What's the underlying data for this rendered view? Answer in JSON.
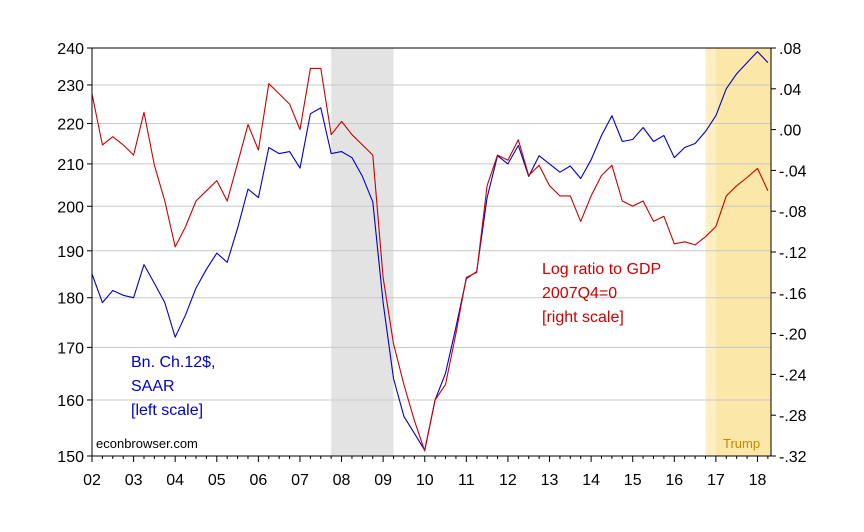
{
  "chart_data": {
    "type": "line",
    "xlabel": "",
    "ylabel": "",
    "x_ticks": [
      "02",
      "03",
      "04",
      "05",
      "06",
      "07",
      "08",
      "09",
      "10",
      "11",
      "12",
      "13",
      "14",
      "15",
      "16",
      "17",
      "18"
    ],
    "x_start": "2002Q1",
    "left_axis": {
      "scale": "log",
      "ylim": [
        150,
        240
      ],
      "ticks": [
        150,
        160,
        170,
        180,
        190,
        200,
        210,
        220,
        230,
        240
      ],
      "tick_labels": [
        "150",
        "160",
        "170",
        "180",
        "190",
        "200",
        "210",
        "220",
        "230",
        "240"
      ]
    },
    "right_axis": {
      "scale": "linear",
      "ylim": [
        -0.32,
        0.08
      ],
      "ticks": [
        -0.32,
        -0.28,
        -0.24,
        -0.2,
        -0.16,
        -0.12,
        -0.08,
        -0.04,
        0.0,
        0.04,
        0.08
      ],
      "tick_labels": [
        "-.32",
        "-.28",
        "-.24",
        "-.20",
        "-.16",
        "-.12",
        "-.08",
        "-.04",
        ".00",
        ".04",
        ".08"
      ]
    },
    "grid": true,
    "shaded_regions": [
      {
        "name": "recession",
        "start": 2007.75,
        "end": 2009.25,
        "color": "#e3e3e3"
      },
      {
        "name": "trump-light",
        "start": 2016.75,
        "end": 2017.0,
        "color": "#fdefc3"
      },
      {
        "name": "trump",
        "start": 2017.0,
        "end": 2018.25,
        "color": "#fbe7a7",
        "label": "Trump"
      }
    ],
    "series": [
      {
        "label": "Bn. Ch.12$, SAAR [left scale]",
        "label_lines": [
          "Bn. Ch.12$,",
          "SAAR",
          "[left scale]"
        ],
        "axis": "left",
        "color": "#0000cc",
        "values": [
          185,
          179,
          181.5,
          180.5,
          180,
          187,
          183,
          179,
          172,
          176.5,
          182,
          186,
          189.5,
          187.5,
          195,
          204,
          202,
          214,
          212.5,
          213,
          209,
          222.5,
          224,
          212.5,
          213,
          211.5,
          207,
          201,
          179,
          164,
          157,
          154,
          151,
          160,
          165,
          174,
          184,
          185.5,
          202,
          212,
          210,
          214.5,
          207,
          212,
          210,
          208,
          209.5,
          206.5,
          211,
          217,
          222,
          215.5,
          216,
          219,
          215.5,
          217,
          211.5,
          214,
          215,
          218,
          222,
          229,
          233,
          236,
          239,
          236
        ]
      },
      {
        "label": "Log ratio to GDP 2007Q4=0 [right scale]",
        "label_lines": [
          "Log ratio to GDP",
          "2007Q4=0",
          "[right scale]"
        ],
        "axis": "right",
        "color": "#cc0000",
        "values": [
          0.035,
          -0.015,
          -0.007,
          -0.015,
          -0.025,
          0.017,
          -0.035,
          -0.07,
          -0.115,
          -0.095,
          -0.07,
          -0.06,
          -0.05,
          -0.07,
          -0.033,
          0.005,
          -0.02,
          0.045,
          0.035,
          0.025,
          0.0,
          0.06,
          0.06,
          -0.005,
          0.008,
          -0.005,
          -0.015,
          -0.025,
          -0.145,
          -0.21,
          -0.25,
          -0.285,
          -0.315,
          -0.265,
          -0.25,
          -0.2,
          -0.145,
          -0.14,
          -0.055,
          -0.025,
          -0.03,
          -0.01,
          -0.045,
          -0.035,
          -0.055,
          -0.065,
          -0.065,
          -0.09,
          -0.065,
          -0.045,
          -0.035,
          -0.07,
          -0.075,
          -0.07,
          -0.09,
          -0.085,
          -0.112,
          -0.11,
          -0.113,
          -0.105,
          -0.095,
          -0.065,
          -0.055,
          -0.047,
          -0.038,
          -0.06
        ]
      }
    ],
    "annotations": [
      {
        "text": "econbrowser.com",
        "color": "#000000"
      },
      {
        "text": "Trump",
        "color": "#cc8800"
      }
    ]
  }
}
